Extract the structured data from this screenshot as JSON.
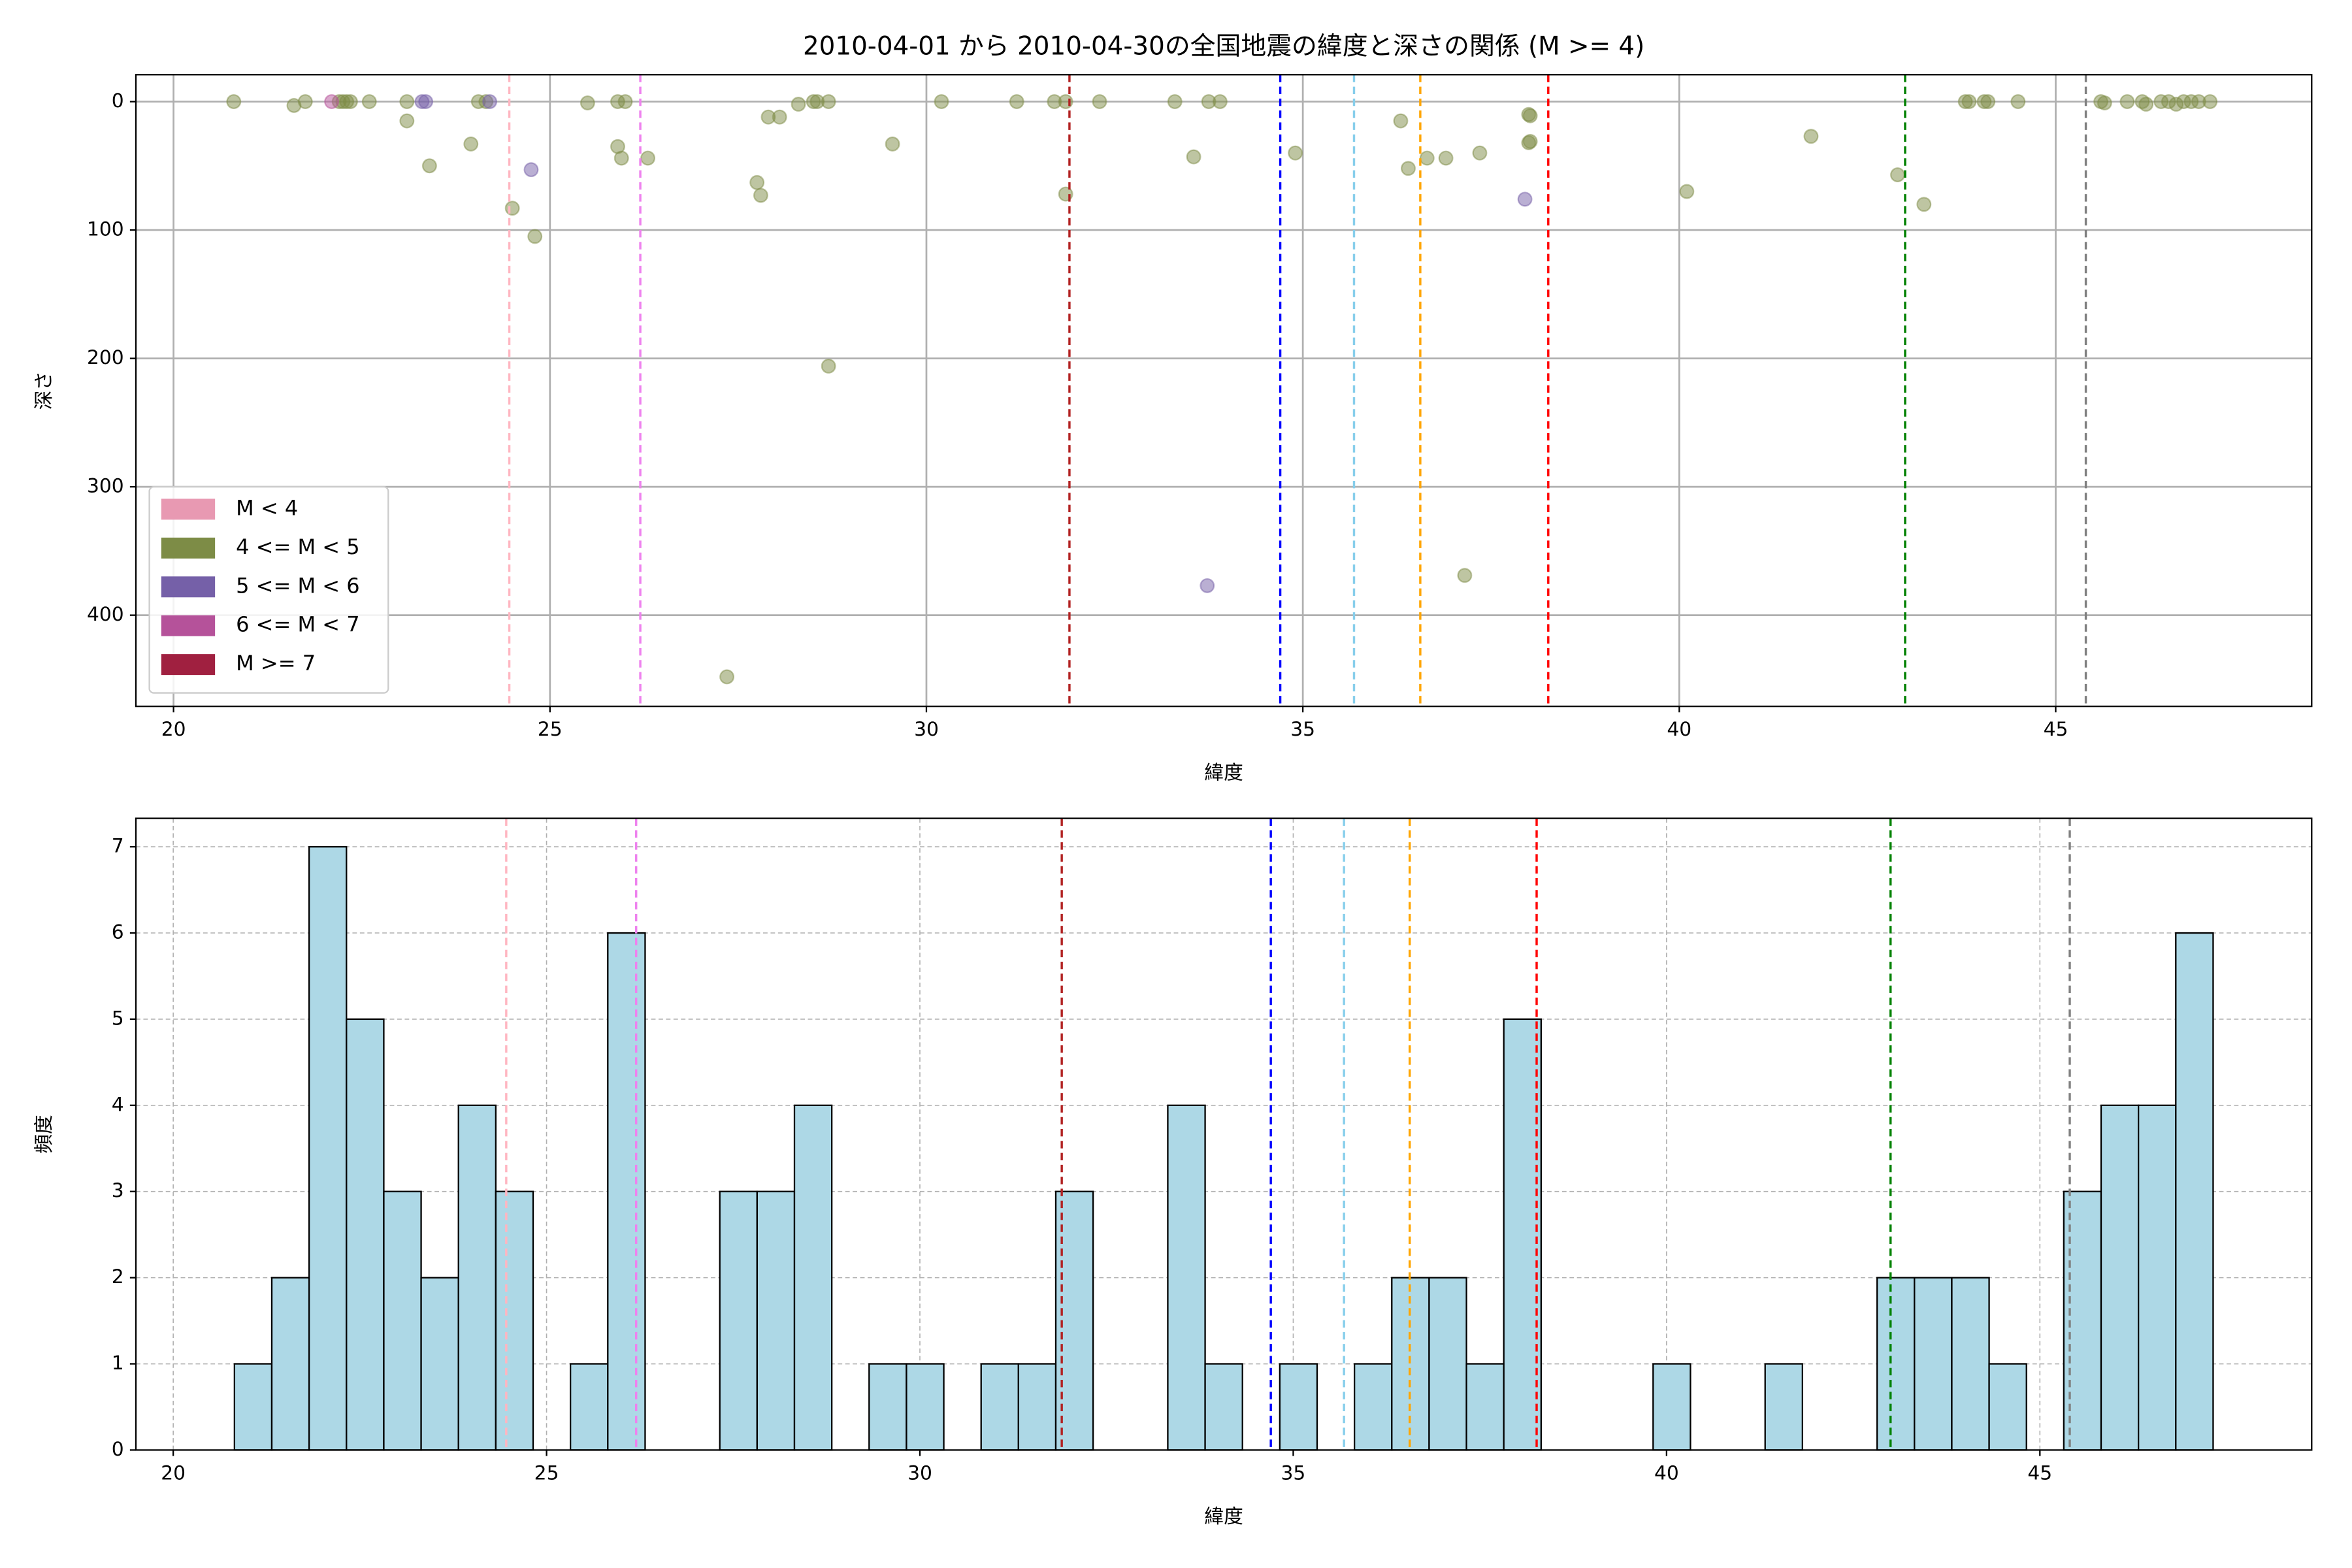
{
  "chart_data": [
    {
      "type": "scatter",
      "title": "2010-04-01 から 2010-04-30の全国地震の緯度と深さの関係 (M >= 4)",
      "x_label": "緯度",
      "y_label": "深さ",
      "xlim": [
        19.5,
        48.4
      ],
      "ylim": [
        471,
        -21
      ],
      "xticks": [
        20,
        25,
        30,
        35,
        40,
        45
      ],
      "yticks": [
        0,
        100,
        200,
        300,
        400
      ],
      "grid": true,
      "grid_style": "solid",
      "legend": "lower left",
      "alpha": 0.5,
      "series": [
        {
          "name": "M < 4",
          "color": "#e899b2",
          "x": [],
          "values": []
        },
        {
          "name": "4 <= M < 5",
          "color": "#7d8c46",
          "x": [
            20.8,
            21.6,
            21.75,
            22.2,
            22.25,
            22.3,
            22.35,
            22.6,
            23.1,
            23.1,
            23.4,
            23.95,
            24.05,
            24.15,
            24.5,
            24.8,
            25.5,
            25.9,
            26.0,
            25.9,
            25.95,
            26.3,
            27.35,
            27.75,
            27.8,
            27.9,
            28.05,
            28.3,
            28.5,
            28.55,
            28.7,
            28.7,
            29.55,
            30.2,
            31.2,
            31.7,
            31.85,
            31.85,
            32.3,
            33.3,
            33.55,
            33.75,
            33.9,
            34.9,
            36.3,
            36.4,
            36.65,
            36.9,
            37.15,
            37.35,
            38.0,
            38.02,
            38.0,
            38.02,
            40.1,
            41.75,
            42.9,
            43.25,
            43.8,
            43.85,
            44.05,
            44.1,
            44.5,
            45.6,
            45.65,
            45.95,
            46.15,
            46.2,
            46.4,
            46.5,
            46.6,
            46.7,
            46.8,
            46.9,
            47.05
          ],
          "values": [
            0,
            3,
            0,
            0,
            0,
            0,
            0,
            0,
            0,
            15,
            50,
            33,
            0,
            0,
            83,
            105,
            1,
            0,
            0,
            35,
            44,
            44,
            448,
            63,
            73,
            12,
            12,
            2,
            0,
            0,
            0,
            206,
            33,
            0,
            0,
            0,
            0,
            72,
            0,
            0,
            43,
            0,
            0,
            40,
            15,
            52,
            44,
            44,
            369,
            40,
            10,
            11,
            32,
            31,
            70,
            27,
            57,
            80,
            0,
            0,
            0,
            0,
            0,
            0,
            1,
            0,
            0,
            2,
            0,
            0,
            2,
            0,
            0,
            0,
            0
          ]
        },
        {
          "name": "5 <= M < 6",
          "color": "#7560a8",
          "x": [
            23.3,
            23.35,
            24.2,
            24.75,
            33.73,
            37.95
          ],
          "values": [
            0,
            0,
            0,
            53,
            377,
            76
          ]
        },
        {
          "name": "6 <= M < 7",
          "color": "#b5529a",
          "x": [
            22.1
          ],
          "values": [
            0
          ]
        },
        {
          "name": "M >= 7",
          "color": "#a02040",
          "x": [],
          "values": []
        }
      ],
      "vlines": [
        {
          "x": 24.46,
          "color": "#ffb6c1"
        },
        {
          "x": 26.2,
          "color": "#ee82ee"
        },
        {
          "x": 31.9,
          "color": "#b22222"
        },
        {
          "x": 34.7,
          "color": "#0000ff"
        },
        {
          "x": 35.68,
          "color": "#87ceeb"
        },
        {
          "x": 36.56,
          "color": "#ffa500"
        },
        {
          "x": 38.26,
          "color": "#ff0000"
        },
        {
          "x": 43.0,
          "color": "#008000"
        },
        {
          "x": 45.4,
          "color": "#808080"
        }
      ]
    },
    {
      "type": "histogram",
      "x_label": "緯度",
      "y_label": "頻度",
      "xlim": [
        19.5,
        48.64
      ],
      "ylim": [
        0,
        7.33
      ],
      "xticks": [
        20,
        25,
        30,
        35,
        40,
        45
      ],
      "yticks": [
        0,
        1,
        2,
        3,
        4,
        5,
        6,
        7
      ],
      "grid": true,
      "grid_style": "dotted",
      "color": "#add8e6",
      "edgecolor": "#000000",
      "bins": [
        20.82,
        21.32,
        21.82,
        22.32,
        22.82,
        23.32,
        23.82,
        24.32,
        24.82,
        25.32,
        25.82,
        26.32,
        26.82,
        27.32,
        27.82,
        28.32,
        28.82,
        29.32,
        29.82,
        30.32,
        30.82,
        31.32,
        31.82,
        32.32,
        32.82,
        33.32,
        33.82,
        34.32,
        34.82,
        35.32,
        35.82,
        36.32,
        36.82,
        37.32,
        37.82,
        38.32,
        38.82,
        39.32,
        39.82,
        40.32,
        40.82,
        41.32,
        41.82,
        42.32,
        42.82,
        43.32,
        43.82,
        44.32,
        44.82,
        45.32,
        45.82,
        46.32,
        46.82,
        47.32
      ],
      "values": [
        1,
        2,
        7,
        5,
        3,
        2,
        4,
        3,
        0,
        1,
        6,
        0,
        0,
        3,
        3,
        4,
        0,
        1,
        1,
        0,
        1,
        1,
        3,
        0,
        0,
        4,
        1,
        0,
        1,
        0,
        1,
        2,
        2,
        1,
        5,
        0,
        0,
        0,
        1,
        0,
        0,
        1,
        0,
        0,
        2,
        2,
        2,
        1,
        0,
        3,
        4,
        4,
        6
      ],
      "vlines": [
        {
          "x": 24.46,
          "color": "#ffb6c1"
        },
        {
          "x": 26.2,
          "color": "#ee82ee"
        },
        {
          "x": 31.9,
          "color": "#b22222"
        },
        {
          "x": 34.7,
          "color": "#0000ff"
        },
        {
          "x": 35.68,
          "color": "#87ceeb"
        },
        {
          "x": 36.56,
          "color": "#ffa500"
        },
        {
          "x": 38.26,
          "color": "#ff0000"
        },
        {
          "x": 43.0,
          "color": "#008000"
        },
        {
          "x": 45.4,
          "color": "#808080"
        }
      ]
    }
  ]
}
